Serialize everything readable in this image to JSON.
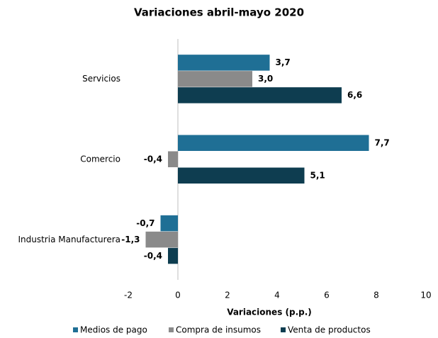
{
  "chart_data": {
    "type": "hbar",
    "title": "Variaciones abril-mayo 2020",
    "x_label": "Variaciones (p.p.)",
    "categories": [
      "Servicios",
      "Comercio",
      "Industria Manufacturera"
    ],
    "series": [
      {
        "name": "Medios de pago",
        "color": "#1f6f95",
        "values": [
          3.7,
          7.7,
          -0.7
        ],
        "value_labels": [
          "3,7",
          "7,7",
          "-0,7"
        ]
      },
      {
        "name": "Compra de insumos",
        "color": "#8a8a8a",
        "values": [
          3.0,
          -0.4,
          -1.3
        ],
        "value_labels": [
          "3,0",
          "-0,4",
          "-1,3"
        ]
      },
      {
        "name": "Venta de productos",
        "color": "#0e3d50",
        "values": [
          6.6,
          5.1,
          -0.4
        ],
        "value_labels": [
          "6,6",
          "5,1",
          "-0,4"
        ]
      }
    ],
    "xlim": [
      -2,
      10
    ],
    "xticks": [
      -2,
      0,
      2,
      4,
      6,
      8,
      10
    ],
    "grid": false,
    "legend": "bottom"
  }
}
